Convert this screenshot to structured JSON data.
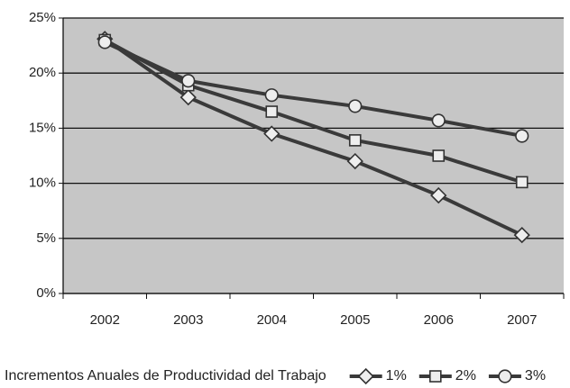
{
  "chart_data": {
    "type": "line",
    "categories": [
      "2002",
      "2003",
      "2004",
      "2005",
      "2006",
      "2007"
    ],
    "series": [
      {
        "name": "1%",
        "color": "#3a3a3a",
        "marker": "diamond",
        "values": [
          23.1,
          17.8,
          14.5,
          12.0,
          8.9,
          5.3
        ]
      },
      {
        "name": "2%",
        "color": "#3a3a3a",
        "marker": "square",
        "values": [
          23.0,
          18.9,
          16.5,
          13.9,
          12.5,
          10.1
        ]
      },
      {
        "name": "3%",
        "color": "#3a3a3a",
        "marker": "circle",
        "values": [
          22.8,
          19.3,
          18.0,
          17.0,
          15.7,
          14.3
        ]
      }
    ],
    "ylim": [
      0,
      25
    ],
    "yticks": [
      {
        "value": 0,
        "label": "0%"
      },
      {
        "value": 5,
        "label": "5%"
      },
      {
        "value": 10,
        "label": "10%"
      },
      {
        "value": 15,
        "label": "15%"
      },
      {
        "value": 20,
        "label": "20%"
      },
      {
        "value": 25,
        "label": "25%"
      }
    ],
    "grid": true,
    "legend_title": "Incrementos Anuales de Productividad del Trabajo",
    "legend": "bottom"
  }
}
